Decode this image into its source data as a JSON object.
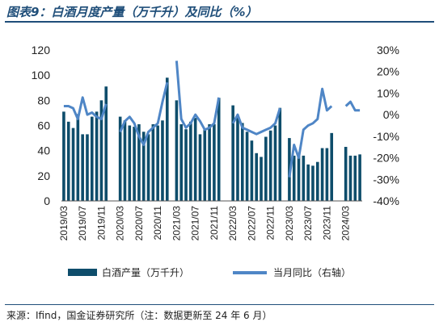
{
  "title": "图表9：白酒月度产量（万千升）及同比（%）",
  "source": "来源：Ifind，国金证券研究所（注：数据更新至 24 年 6 月）",
  "colors": {
    "bar": "#0e4d6b",
    "line": "#4f86c6",
    "title": "#1f4e79"
  },
  "chart_data": {
    "type": "bar+line",
    "legend_position": "bottom",
    "grid": false,
    "left_axis": {
      "ylim": [
        0,
        120
      ],
      "ticks": [
        "0",
        "20",
        "40",
        "60",
        "80",
        "100",
        "120"
      ]
    },
    "right_axis": {
      "ylim": [
        -40,
        30
      ],
      "ticks": [
        "-40%",
        "-30%",
        "-20%",
        "-10%",
        "0%",
        "10%",
        "20%",
        "30%"
      ]
    },
    "x_tick_labels": [
      "2019/03",
      "2019/07",
      "2019/11",
      "2020/03",
      "2020/07",
      "2020/11",
      "2021/03",
      "2021/07",
      "2021/11",
      "2022/03",
      "2022/07",
      "2022/11",
      "2023/03",
      "2023/07",
      "2023/11",
      "2024/03"
    ],
    "periods": [
      "2019/03",
      "2019/04",
      "2019/05",
      "2019/06",
      "2019/07",
      "2019/08",
      "2019/09",
      "2019/10",
      "2019/11",
      "2019/12",
      "2020/01",
      "2020/02",
      "2020/03",
      "2020/04",
      "2020/05",
      "2020/06",
      "2020/07",
      "2020/08",
      "2020/09",
      "2020/10",
      "2020/11",
      "2020/12",
      "2021/01",
      "2021/02",
      "2021/03",
      "2021/04",
      "2021/05",
      "2021/06",
      "2021/07",
      "2021/08",
      "2021/09",
      "2021/10",
      "2021/11",
      "2021/12",
      "2022/01",
      "2022/02",
      "2022/03",
      "2022/04",
      "2022/05",
      "2022/06",
      "2022/07",
      "2022/08",
      "2022/09",
      "2022/10",
      "2022/11",
      "2022/12",
      "2023/01",
      "2023/02",
      "2023/03",
      "2023/04",
      "2023/05",
      "2023/06",
      "2023/07",
      "2023/08",
      "2023/09",
      "2023/10",
      "2023/11",
      "2023/12",
      "2024/01",
      "2024/02",
      "2024/03",
      "2024/04",
      "2024/05",
      "2024/06"
    ],
    "series": [
      {
        "name": "白酒产量（万千升）",
        "type": "bar",
        "axis": "left",
        "values": [
          71,
          63,
          58,
          69,
          53,
          53,
          67,
          71,
          80,
          91,
          null,
          null,
          67,
          64,
          60,
          59,
          61,
          55,
          53,
          61,
          60,
          64,
          98,
          null,
          80,
          61,
          57,
          63,
          66,
          53,
          57,
          61,
          61,
          82,
          null,
          null,
          76,
          68,
          62,
          55,
          48,
          38,
          35,
          51,
          56,
          60,
          74,
          null,
          50,
          36,
          37,
          36,
          29,
          28,
          31,
          42,
          42,
          54,
          null,
          null,
          43,
          36,
          36,
          37
        ]
      },
      {
        "name": "当月同比（右轴）",
        "type": "line",
        "axis": "right",
        "values": [
          4,
          4,
          3,
          -2,
          8,
          0,
          1,
          -1,
          -2,
          5,
          null,
          null,
          -8,
          -3,
          -1,
          -4,
          -10,
          -14,
          -8,
          -6,
          -4,
          6,
          15,
          null,
          25,
          -2,
          -6,
          -4,
          0,
          -3,
          -7,
          -6,
          -4,
          8,
          null,
          null,
          -4,
          0,
          -6,
          -7,
          -8,
          -9,
          -8,
          -7,
          -6,
          -4,
          3,
          null,
          -29,
          -14,
          -20,
          -7,
          -5,
          -4,
          -2,
          12,
          2,
          4,
          null,
          null,
          4,
          6,
          2,
          2
        ]
      }
    ]
  }
}
